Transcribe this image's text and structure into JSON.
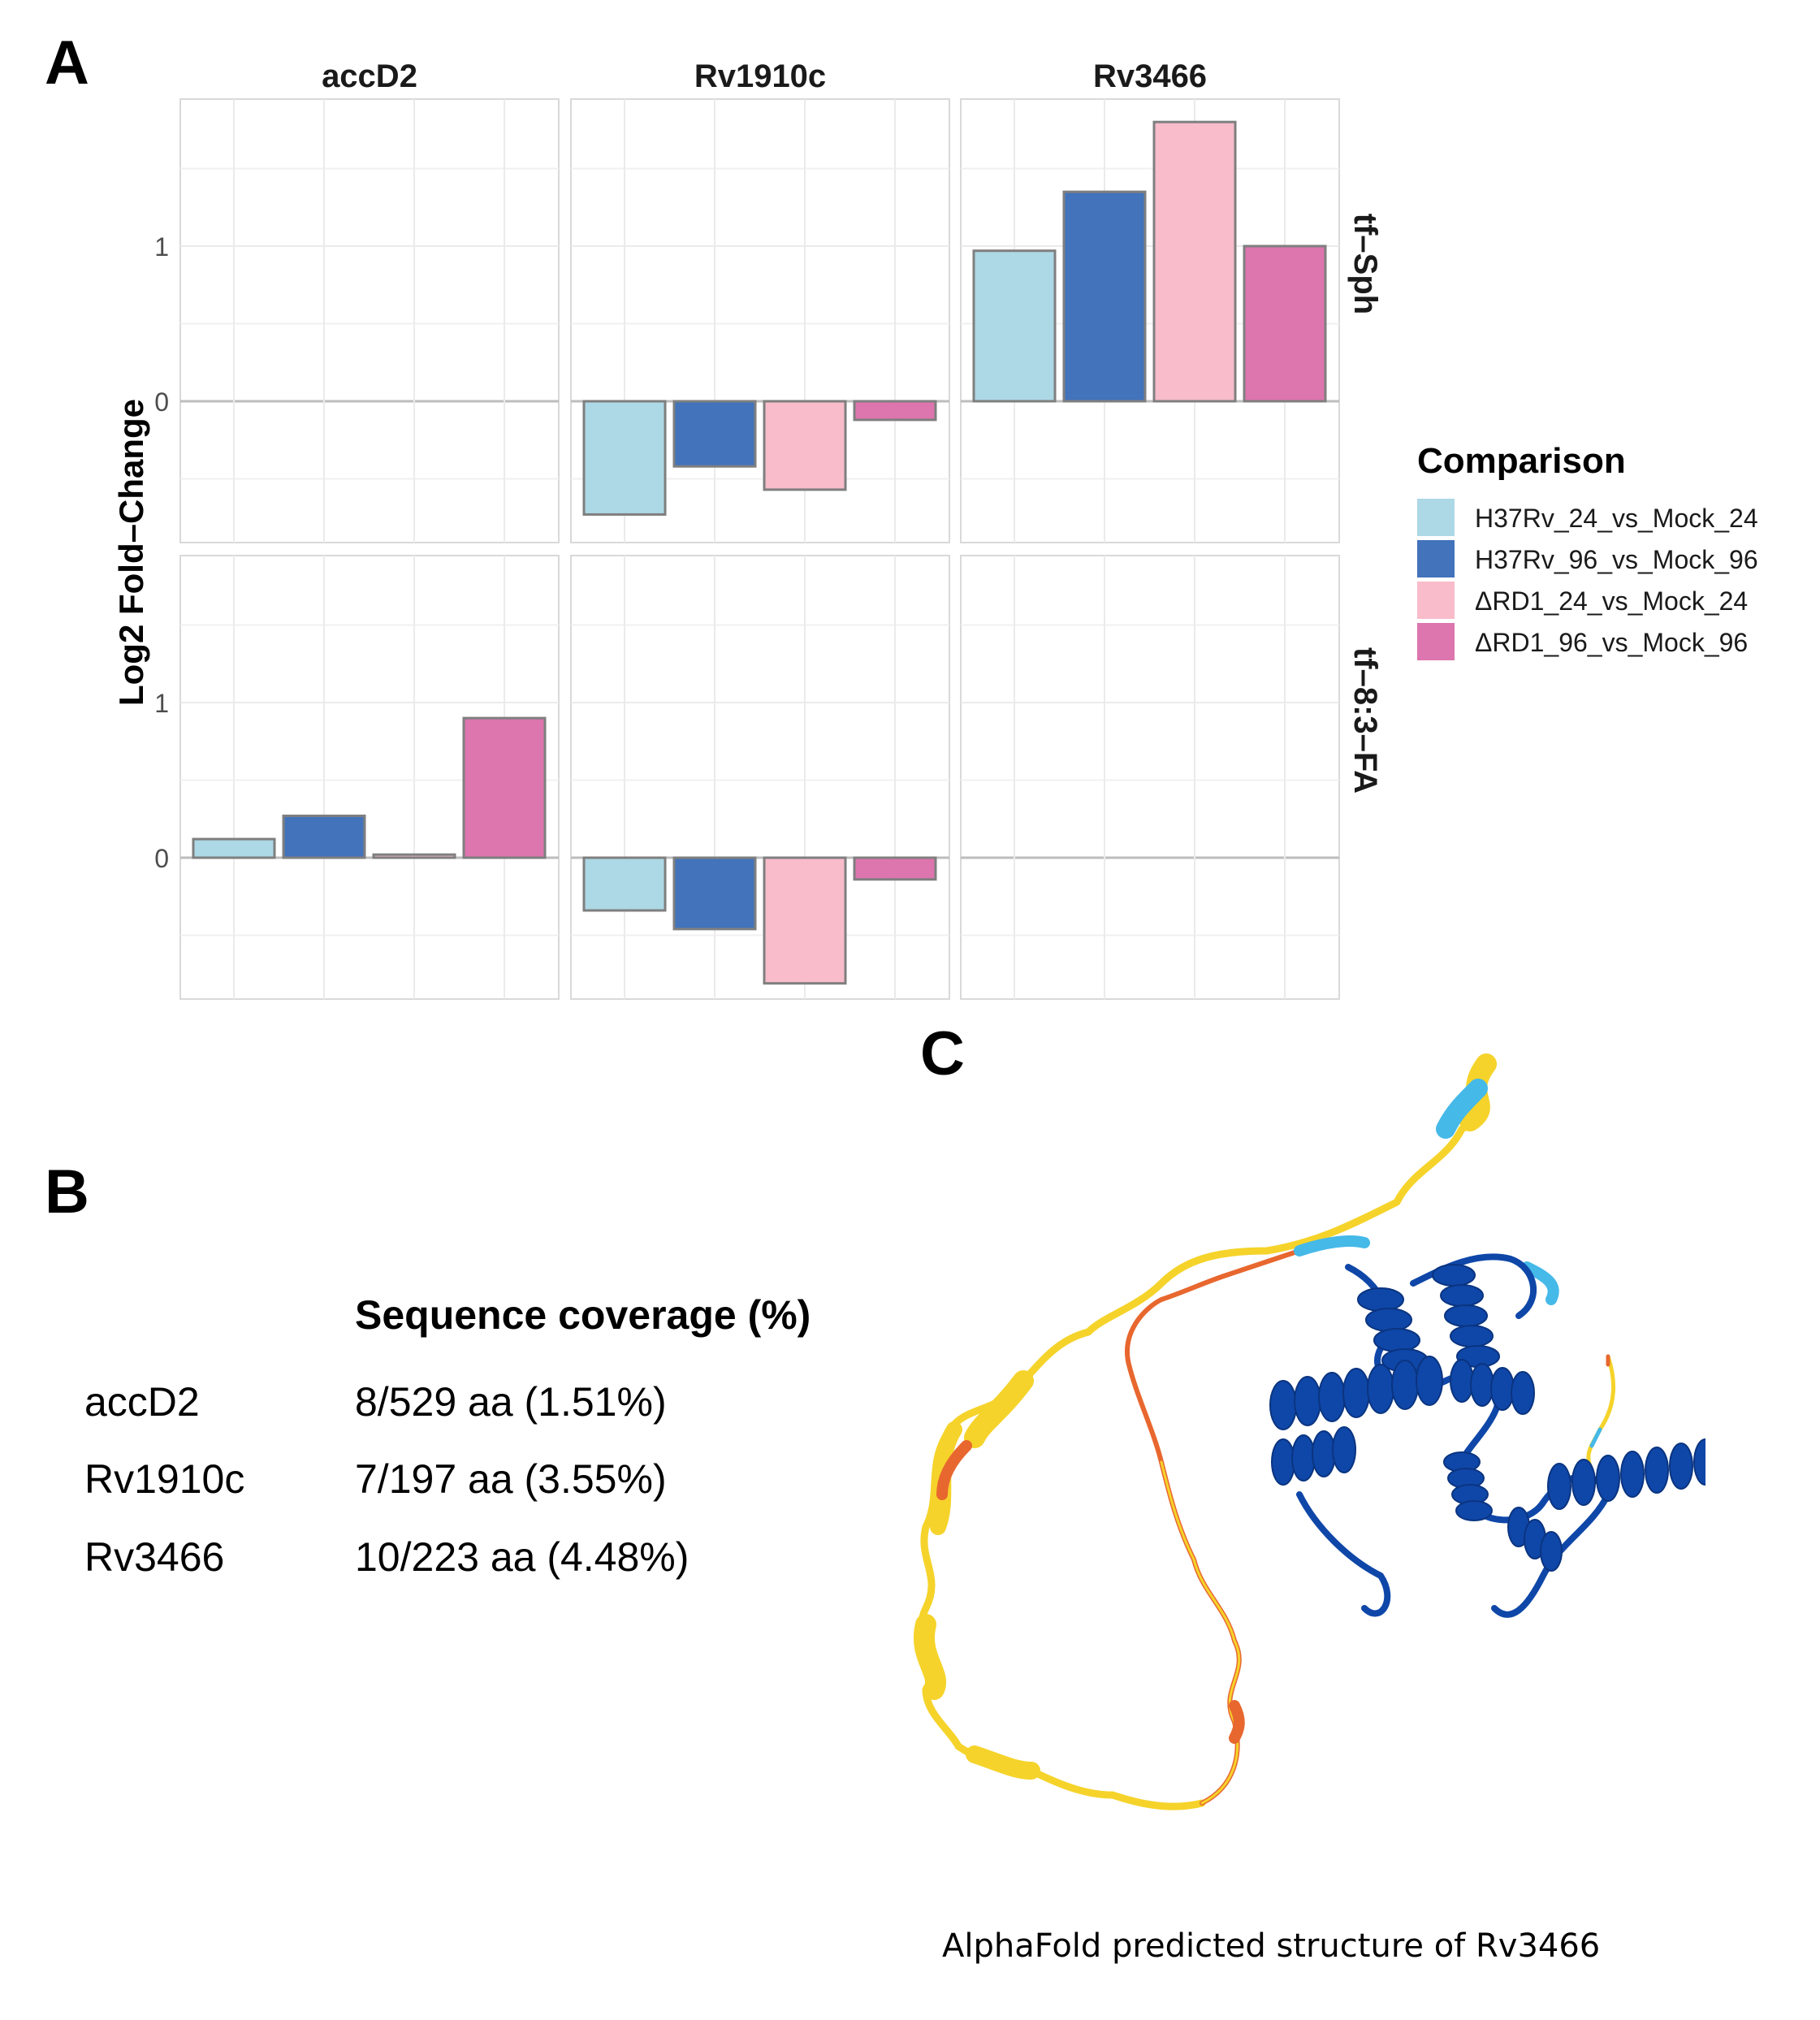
{
  "panels": {
    "a": "A",
    "b": "B",
    "c": "C"
  },
  "chart_data": {
    "type": "bar",
    "facet_columns": [
      "accD2",
      "Rv1910c",
      "Rv3466"
    ],
    "facet_rows": [
      "tf–Sph",
      "tf–8:3–FA"
    ],
    "ylabel": "Log2 Fold–Change",
    "xlabel": "",
    "ylim": [
      -0.93,
      1.9
    ],
    "y_ticks": [
      0,
      1
    ],
    "grid": true,
    "legend": {
      "title": "Comparison",
      "placement": "right",
      "entries": [
        {
          "name": "H37Rv_24_vs_Mock_24",
          "color": "#add8e6"
        },
        {
          "name": "H37Rv_96_vs_Mock_96",
          "color": "#4273bb"
        },
        {
          "name": "ΔRD1_24_vs_Mock_24",
          "color": "#f8bccb"
        },
        {
          "name": "ΔRD1_96_vs_Mock_96",
          "color": "#dd75ae"
        }
      ]
    },
    "cells": [
      {
        "row": 0,
        "col": 0,
        "values": []
      },
      {
        "row": 0,
        "col": 1,
        "values": [
          -0.73,
          -0.42,
          -0.57,
          -0.12
        ]
      },
      {
        "row": 0,
        "col": 2,
        "values": [
          0.97,
          1.35,
          1.8,
          1.0
        ]
      },
      {
        "row": 1,
        "col": 0,
        "values": [
          0.12,
          0.27,
          0.02,
          0.9
        ]
      },
      {
        "row": 1,
        "col": 1,
        "values": [
          -0.34,
          -0.46,
          -0.81,
          -0.14
        ]
      },
      {
        "row": 1,
        "col": 2,
        "values": []
      }
    ]
  },
  "coverage": {
    "title": "Sequence coverage (%)",
    "rows": [
      {
        "gene": "accD2",
        "value": "8/529 aa (1.51%)"
      },
      {
        "gene": "Rv1910c",
        "value": "7/197 aa (3.55%)"
      },
      {
        "gene": "Rv3466",
        "value": "10/223 aa (4.48%)"
      }
    ]
  },
  "structure": {
    "caption": "AlphaFold predicted structure of Rv3466",
    "colors": {
      "very_high": "#0f47a8",
      "high": "#45b9e8",
      "low": "#f5d32a",
      "very_low": "#e8672f"
    }
  }
}
